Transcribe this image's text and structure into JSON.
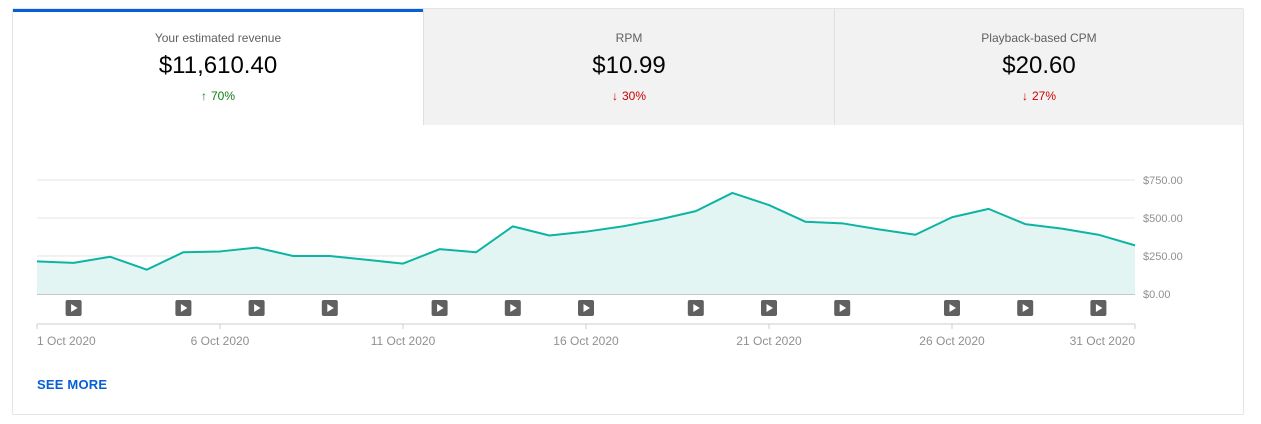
{
  "tabs": [
    {
      "label": "Your estimated revenue",
      "value": "$11,610.40",
      "change": "70%",
      "direction": "up"
    },
    {
      "label": "RPM",
      "value": "$10.99",
      "change": "30%",
      "direction": "down"
    },
    {
      "label": "Playback-based CPM",
      "value": "$20.60",
      "change": "27%",
      "direction": "down"
    }
  ],
  "chart_data": {
    "type": "area",
    "x": [
      "1 Oct 2020",
      "2 Oct 2020",
      "3 Oct 2020",
      "4 Oct 2020",
      "5 Oct 2020",
      "6 Oct 2020",
      "7 Oct 2020",
      "8 Oct 2020",
      "9 Oct 2020",
      "10 Oct 2020",
      "11 Oct 2020",
      "12 Oct 2020",
      "13 Oct 2020",
      "14 Oct 2020",
      "15 Oct 2020",
      "16 Oct 2020",
      "17 Oct 2020",
      "18 Oct 2020",
      "19 Oct 2020",
      "20 Oct 2020",
      "21 Oct 2020",
      "22 Oct 2020",
      "23 Oct 2020",
      "24 Oct 2020",
      "25 Oct 2020",
      "26 Oct 2020",
      "27 Oct 2020",
      "28 Oct 2020",
      "29 Oct 2020",
      "30 Oct 2020",
      "31 Oct 2020"
    ],
    "values": [
      215,
      205,
      245,
      160,
      275,
      280,
      305,
      250,
      250,
      225,
      200,
      295,
      275,
      445,
      385,
      410,
      445,
      490,
      545,
      665,
      585,
      475,
      465,
      425,
      390,
      505,
      560,
      460,
      430,
      390,
      320
    ],
    "x_tick_labels": [
      "1 Oct 2020",
      "6 Oct 2020",
      "11 Oct 2020",
      "16 Oct 2020",
      "21 Oct 2020",
      "26 Oct 2020",
      "31 Oct 2020"
    ],
    "y_tick_labels": [
      "$750.00",
      "$500.00",
      "$250.00",
      "$0.00"
    ],
    "y_ticks": [
      750,
      500,
      250,
      0
    ],
    "ylim": [
      0,
      750
    ],
    "grid": true,
    "line_color": "#0cb4a3",
    "fill_color": "#e3f5f3",
    "video_marker_days": [
      "2 Oct 2020",
      "5 Oct 2020",
      "7 Oct 2020",
      "9 Oct 2020",
      "12 Oct 2020",
      "14 Oct 2020",
      "16 Oct 2020",
      "19 Oct 2020",
      "21 Oct 2020",
      "23 Oct 2020",
      "26 Oct 2020",
      "28 Oct 2020",
      "30 Oct 2020"
    ]
  },
  "see_more": "SEE MORE"
}
